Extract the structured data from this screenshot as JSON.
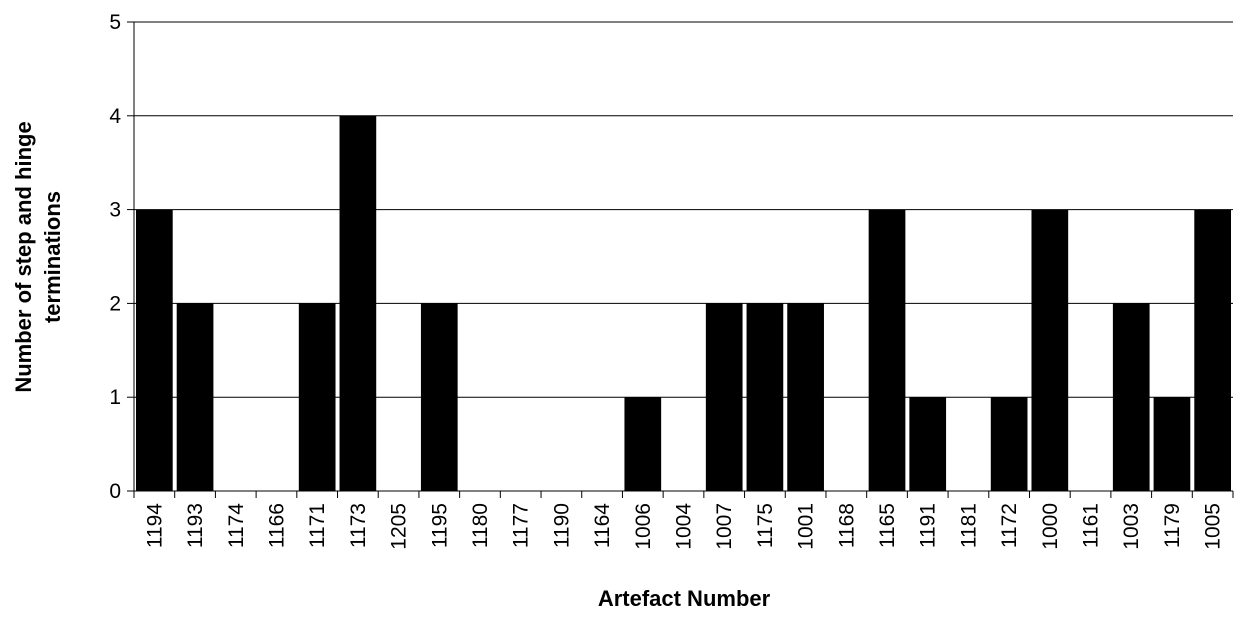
{
  "chart_data": {
    "type": "bar",
    "title": "",
    "xlabel": "Artefact Number",
    "ylabel_line1": "Number of step and hinge",
    "ylabel_line2": "terminations",
    "ylim": [
      0,
      5
    ],
    "yticks": [
      0,
      1,
      2,
      3,
      4,
      5
    ],
    "grid": "horizontal",
    "legend": "none",
    "bar_color": "#000000",
    "categories": [
      "1194",
      "1193",
      "1174",
      "1166",
      "1171",
      "1173",
      "1205",
      "1195",
      "1180",
      "1177",
      "1190",
      "1164",
      "1006",
      "1004",
      "1007",
      "1175",
      "1001",
      "1168",
      "1165",
      "1191",
      "1181",
      "1172",
      "1000",
      "1161",
      "1003",
      "1179",
      "1005"
    ],
    "values": [
      3,
      2,
      0,
      0,
      2,
      4,
      0,
      2,
      0,
      0,
      0,
      0,
      1,
      0,
      2,
      2,
      2,
      0,
      3,
      1,
      0,
      1,
      3,
      0,
      2,
      1,
      3
    ]
  }
}
